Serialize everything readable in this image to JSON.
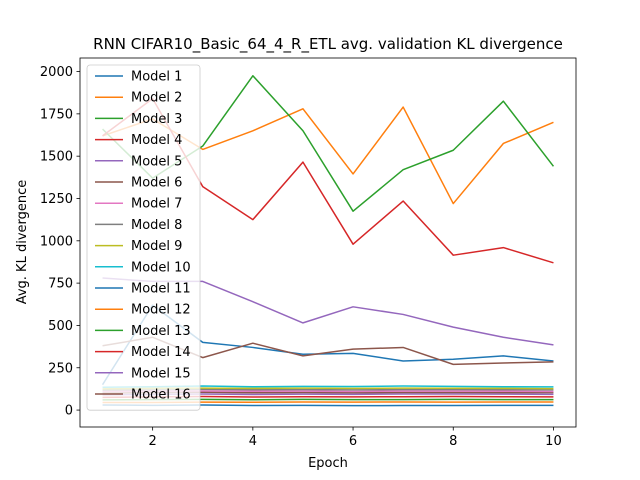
{
  "chart_data": {
    "type": "line",
    "title": "RNN CIFAR10_Basic_64_4_R_ETL avg. validation KL divergence",
    "xlabel": "Epoch",
    "ylabel": "Avg. KL divergence",
    "xlim": [
      0.55,
      10.45
    ],
    "ylim": [
      -100,
      2080
    ],
    "xticks": [
      2,
      4,
      6,
      8,
      10
    ],
    "yticks": [
      0,
      250,
      500,
      750,
      1000,
      1250,
      1500,
      1750,
      2000
    ],
    "legend_position": "upper-left",
    "grid": false,
    "x": [
      1,
      2,
      3,
      4,
      5,
      6,
      7,
      8,
      9,
      10
    ],
    "series": [
      {
        "name": "Model 1",
        "color": "#1f77b4",
        "values": [
          30,
          28,
          30,
          27,
          28,
          26,
          27,
          27,
          28,
          28
        ]
      },
      {
        "name": "Model 2",
        "color": "#ff7f0e",
        "values": [
          45,
          45,
          47,
          46,
          48,
          47,
          48,
          47,
          48,
          48
        ]
      },
      {
        "name": "Model 3",
        "color": "#2ca02c",
        "values": [
          60,
          62,
          63,
          61,
          63,
          62,
          62,
          63,
          62,
          62
        ]
      },
      {
        "name": "Model 4",
        "color": "#d62728",
        "values": [
          75,
          78,
          80,
          77,
          79,
          78,
          79,
          80,
          79,
          78
        ]
      },
      {
        "name": "Model 5",
        "color": "#9467bd",
        "values": [
          90,
          92,
          95,
          92,
          94,
          93,
          95,
          95,
          94,
          93
        ]
      },
      {
        "name": "Model 6",
        "color": "#8c564b",
        "values": [
          100,
          103,
          105,
          102,
          104,
          102,
          104,
          104,
          103,
          103
        ]
      },
      {
        "name": "Model 7",
        "color": "#e377c2",
        "values": [
          110,
          112,
          113,
          111,
          112,
          110,
          112,
          112,
          111,
          110
        ]
      },
      {
        "name": "Model 8",
        "color": "#7f7f7f",
        "values": [
          118,
          120,
          122,
          120,
          121,
          119,
          121,
          121,
          120,
          119
        ]
      },
      {
        "name": "Model 9",
        "color": "#bcbd22",
        "values": [
          125,
          128,
          130,
          128,
          130,
          128,
          130,
          129,
          128,
          127
        ]
      },
      {
        "name": "Model 10",
        "color": "#17becf",
        "values": [
          135,
          138,
          142,
          138,
          140,
          139,
          142,
          140,
          138,
          137
        ]
      },
      {
        "name": "Model 11",
        "color": "#1f77b4",
        "values": [
          150,
          620,
          400,
          370,
          330,
          335,
          290,
          300,
          320,
          290
        ]
      },
      {
        "name": "Model 12",
        "color": "#ff7f0e",
        "values": [
          1620,
          1720,
          1540,
          1650,
          1780,
          1395,
          1790,
          1220,
          1575,
          1700
        ]
      },
      {
        "name": "Model 13",
        "color": "#2ca02c",
        "values": [
          1660,
          1370,
          1560,
          1975,
          1650,
          1175,
          1420,
          1535,
          1825,
          1440
        ]
      },
      {
        "name": "Model 14",
        "color": "#d62728",
        "values": [
          1620,
          1840,
          1320,
          1125,
          1465,
          980,
          1235,
          915,
          960,
          870
        ]
      },
      {
        "name": "Model 15",
        "color": "#9467bd",
        "values": [
          780,
          760,
          760,
          640,
          515,
          610,
          565,
          490,
          430,
          385
        ]
      },
      {
        "name": "Model 16",
        "color": "#8c564b",
        "values": [
          380,
          430,
          310,
          395,
          320,
          360,
          370,
          270,
          278,
          285
        ]
      }
    ]
  }
}
